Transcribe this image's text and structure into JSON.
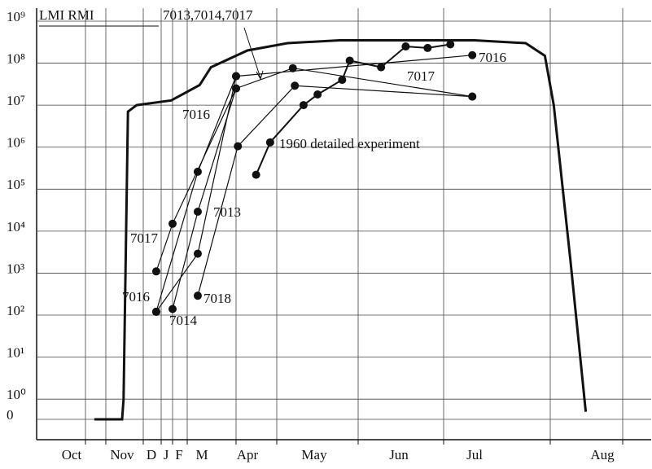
{
  "chart_data": {
    "type": "line",
    "y_scale": "log",
    "ylim": [
      0.33,
      1000000000
    ],
    "yticks": [
      {
        "value": 1000000000,
        "label": "10⁹"
      },
      {
        "value": 100000000,
        "label": "10⁸"
      },
      {
        "value": 10000000,
        "label": "10⁷"
      },
      {
        "value": 1000000,
        "label": "10⁶"
      },
      {
        "value": 100000,
        "label": "10⁵"
      },
      {
        "value": 10000,
        "label": "10⁴"
      },
      {
        "value": 1000,
        "label": "10³"
      },
      {
        "value": 100,
        "label": "10²"
      },
      {
        "value": 10,
        "label": "10¹"
      },
      {
        "value": 1,
        "label": "10⁰"
      },
      0
    ],
    "categories": [
      "Oct",
      "Nov",
      "D",
      "J",
      "F",
      "M",
      "Apr",
      "May",
      "Jun",
      "Jul",
      "Aug"
    ],
    "grid": true,
    "color": "#111",
    "envelope": {
      "name": "LMI RMI",
      "x": [
        0.45,
        1.0,
        1.05,
        1.2,
        1.5,
        3.4,
        4.9,
        5.2,
        6.0,
        6.6,
        7.3,
        9.0,
        9.4,
        9.55,
        9.62,
        9.75,
        9.87
      ],
      "values": [
        0,
        0,
        1,
        7000000,
        10000000,
        13000000,
        30000000,
        80000000,
        200000000,
        300000000,
        350000000,
        350000000,
        300000000,
        150000000,
        10000000,
        2000,
        0.5
      ]
    },
    "series": [
      {
        "x": [
          2.33,
          4.82,
          5.75,
          8.97
        ],
        "values": [
          120,
          260000,
          49000000,
          155000000
        ]
      },
      {
        "x": [
          2.33,
          3.5,
          5.75,
          6.68,
          8.97
        ],
        "values": [
          1100,
          15000,
          25000000,
          76000000,
          16000000
        ]
      },
      {
        "x": [
          3.5,
          4.82,
          5.75
        ],
        "values": [
          140,
          29000,
          25000000
        ]
      },
      {
        "x": [
          2.33,
          4.82,
          5.75
        ],
        "values": [
          120,
          2900,
          49000000
        ]
      },
      {
        "x": [
          4.82,
          5.79,
          6.71,
          8.97
        ],
        "values": [
          290,
          1050000,
          29000000,
          16000000
        ]
      },
      {
        "x": [
          6.13,
          6.34,
          6.84,
          7.04,
          7.33,
          7.42,
          7.79,
          8.09,
          8.38,
          8.68
        ],
        "values": [
          220000,
          1300000,
          10000000,
          18000000,
          40000000,
          115000000,
          80000000,
          250000000,
          230000000,
          280000000
        ]
      }
    ],
    "annotations": [
      "7013,7014,7017",
      "7016",
      "7017",
      "7016",
      "7014",
      "7018",
      "7013",
      "7017",
      "7016",
      "1960 detailed experiment"
    ]
  }
}
